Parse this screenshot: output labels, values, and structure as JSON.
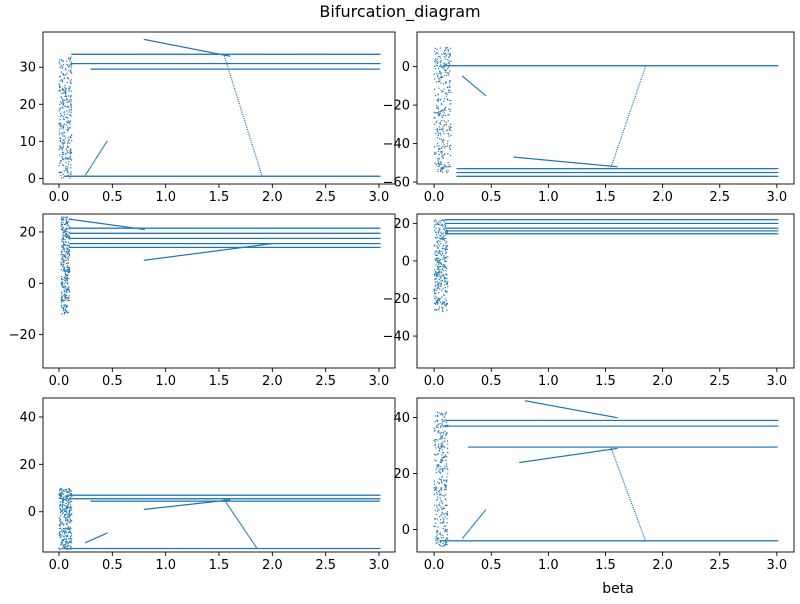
{
  "figure": {
    "title": "Bifurcation_diagram",
    "xlabel": "beta",
    "point_color": "#1f77b4"
  },
  "chart_data": [
    {
      "type": "scatter",
      "xlim": [
        -0.15,
        3.15
      ],
      "ylim": [
        -1.5,
        39.5
      ],
      "xticks": [
        0.0,
        0.5,
        1.0,
        1.5,
        2.0,
        2.5,
        3.0
      ],
      "xtick_labels": [
        "0.0",
        "0.5",
        "1.0",
        "1.5",
        "2.0",
        "2.5",
        "3.0"
      ],
      "yticks": [
        0,
        10,
        20,
        30
      ],
      "ytick_labels": [
        "0",
        "10",
        "20",
        "30"
      ],
      "branches": [
        {
          "x0": 0.12,
          "x1": 3.0,
          "y0": 33.5,
          "y1": 33.5
        },
        {
          "x0": 0.12,
          "x1": 3.0,
          "y0": 31.0,
          "y1": 31.0
        },
        {
          "x0": 0.3,
          "x1": 3.0,
          "y0": 29.5,
          "y1": 29.5
        },
        {
          "x0": 0.05,
          "x1": 3.0,
          "y0": 0.6,
          "y1": 0.6
        },
        {
          "x0": 0.8,
          "x1": 1.6,
          "y0": 37.5,
          "y1": 33.0
        },
        {
          "x0": 1.55,
          "x1": 1.9,
          "y0": 33.0,
          "y1": 1.0
        },
        {
          "x0": 0.25,
          "x1": 0.45,
          "y0": 1.0,
          "y1": 10.0
        }
      ],
      "chaos": {
        "x0": 0.0,
        "x1": 0.12,
        "ymin": 0,
        "ymax": 33
      }
    },
    {
      "type": "scatter",
      "xlim": [
        -0.15,
        3.15
      ],
      "ylim": [
        -61,
        18
      ],
      "xticks": [
        0.0,
        0.5,
        1.0,
        1.5,
        2.0,
        2.5,
        3.0
      ],
      "xtick_labels": [
        "0.0",
        "0.5",
        "1.0",
        "1.5",
        "2.0",
        "2.5",
        "3.0"
      ],
      "yticks": [
        0,
        -20,
        -40,
        -60
      ],
      "ytick_labels": [
        "0",
        "−20",
        "−40",
        "−60"
      ],
      "branches": [
        {
          "x0": 0.08,
          "x1": 3.0,
          "y0": 0.5,
          "y1": 0.5
        },
        {
          "x0": 0.2,
          "x1": 3.0,
          "y0": -53.0,
          "y1": -53.0
        },
        {
          "x0": 0.2,
          "x1": 3.0,
          "y0": -55.0,
          "y1": -55.0
        },
        {
          "x0": 0.2,
          "x1": 3.0,
          "y0": -57.0,
          "y1": -57.0
        },
        {
          "x0": 0.7,
          "x1": 1.6,
          "y0": -47.0,
          "y1": -52.0
        },
        {
          "x0": 1.55,
          "x1": 1.85,
          "y0": -52.0,
          "y1": 0.0
        },
        {
          "x0": 0.25,
          "x1": 0.45,
          "y0": -5.0,
          "y1": -15.0
        }
      ],
      "chaos": {
        "x0": 0.0,
        "x1": 0.15,
        "ymin": -55,
        "ymax": 10
      }
    },
    {
      "type": "scatter",
      "xlim": [
        -0.15,
        3.15
      ],
      "ylim": [
        -33,
        27
      ],
      "xticks": [
        0.0,
        0.5,
        1.0,
        1.5,
        2.0,
        2.5,
        3.0
      ],
      "xtick_labels": [
        "0.0",
        "0.5",
        "1.0",
        "1.5",
        "2.0",
        "2.5",
        "3.0"
      ],
      "yticks": [
        20,
        0,
        -20
      ],
      "ytick_labels": [
        "20",
        "0",
        "−20"
      ],
      "branches": [
        {
          "x0": 0.1,
          "x1": 3.0,
          "y0": 21.5,
          "y1": 21.5
        },
        {
          "x0": 0.1,
          "x1": 3.0,
          "y0": 19.5,
          "y1": 19.5
        },
        {
          "x0": 0.1,
          "x1": 3.0,
          "y0": 17.5,
          "y1": 17.5
        },
        {
          "x0": 0.1,
          "x1": 3.0,
          "y0": 15.5,
          "y1": 15.5
        },
        {
          "x0": 0.1,
          "x1": 3.0,
          "y0": 14.0,
          "y1": 14.0
        },
        {
          "x0": 0.8,
          "x1": 2.0,
          "y0": 9.0,
          "y1": 15.5
        },
        {
          "x0": 0.1,
          "x1": 0.8,
          "y0": 25.0,
          "y1": 21.0
        }
      ],
      "chaos": {
        "x0": 0.02,
        "x1": 0.1,
        "ymin": -12,
        "ymax": 26
      }
    },
    {
      "type": "scatter",
      "xlim": [
        -0.15,
        3.15
      ],
      "ylim": [
        -57,
        25
      ],
      "xticks": [
        0.0,
        0.5,
        1.0,
        1.5,
        2.0,
        2.5,
        3.0
      ],
      "xtick_labels": [
        "0.0",
        "0.5",
        "1.0",
        "1.5",
        "2.0",
        "2.5",
        "3.0"
      ],
      "yticks": [
        20,
        0,
        -20,
        -40
      ],
      "ytick_labels": [
        "20",
        "0",
        "−20",
        "−40"
      ],
      "branches": [
        {
          "x0": 0.1,
          "x1": 3.0,
          "y0": 22.0,
          "y1": 22.0
        },
        {
          "x0": 0.1,
          "x1": 3.0,
          "y0": 20.0,
          "y1": 20.0
        },
        {
          "x0": 0.1,
          "x1": 3.0,
          "y0": 17.5,
          "y1": 17.5
        },
        {
          "x0": 0.1,
          "x1": 3.0,
          "y0": 16.0,
          "y1": 16.0
        },
        {
          "x0": 0.1,
          "x1": 3.0,
          "y0": 14.5,
          "y1": 14.5
        }
      ],
      "chaos": {
        "x0": 0.0,
        "x1": 0.12,
        "ymin": -27,
        "ymax": 22
      }
    },
    {
      "type": "scatter",
      "xlim": [
        -0.15,
        3.15
      ],
      "ylim": [
        -17,
        48
      ],
      "xticks": [
        0.0,
        0.5,
        1.0,
        1.5,
        2.0,
        2.5,
        3.0
      ],
      "xtick_labels": [
        "0.0",
        "0.5",
        "1.0",
        "1.5",
        "2.0",
        "2.5",
        "3.0"
      ],
      "yticks": [
        40,
        20,
        0
      ],
      "ytick_labels": [
        "40",
        "20",
        "0"
      ],
      "branches": [
        {
          "x0": 0.1,
          "x1": 3.0,
          "y0": 7.0,
          "y1": 7.0
        },
        {
          "x0": 0.1,
          "x1": 3.0,
          "y0": 5.5,
          "y1": 5.5
        },
        {
          "x0": 0.3,
          "x1": 3.0,
          "y0": 4.5,
          "y1": 4.5
        },
        {
          "x0": 0.05,
          "x1": 3.0,
          "y0": -15.5,
          "y1": -15.5
        },
        {
          "x0": 0.8,
          "x1": 1.6,
          "y0": 1.0,
          "y1": 5.0
        },
        {
          "x0": 1.55,
          "x1": 1.85,
          "y0": 5.0,
          "y1": -15.0
        },
        {
          "x0": 0.25,
          "x1": 0.45,
          "y0": -13.0,
          "y1": -9.0
        }
      ],
      "chaos": {
        "x0": 0.0,
        "x1": 0.12,
        "ymin": -16,
        "ymax": 10
      }
    },
    {
      "type": "scatter",
      "xlim": [
        -0.15,
        3.15
      ],
      "ylim": [
        -8,
        47
      ],
      "xticks": [
        0.0,
        0.5,
        1.0,
        1.5,
        2.0,
        2.5,
        3.0
      ],
      "xtick_labels": [
        "0.0",
        "0.5",
        "1.0",
        "1.5",
        "2.0",
        "2.5",
        "3.0"
      ],
      "yticks": [
        40,
        20,
        0
      ],
      "ytick_labels": [
        "40",
        "20",
        "0"
      ],
      "branches": [
        {
          "x0": 0.1,
          "x1": 3.0,
          "y0": 39.0,
          "y1": 39.0
        },
        {
          "x0": 0.1,
          "x1": 3.0,
          "y0": 37.0,
          "y1": 37.0
        },
        {
          "x0": 0.3,
          "x1": 3.0,
          "y0": 29.5,
          "y1": 29.5
        },
        {
          "x0": 0.05,
          "x1": 3.0,
          "y0": -4.0,
          "y1": -4.0
        },
        {
          "x0": 0.8,
          "x1": 1.6,
          "y0": 46.0,
          "y1": 40.0
        },
        {
          "x0": 0.75,
          "x1": 1.6,
          "y0": 24.0,
          "y1": 29.0
        },
        {
          "x0": 1.55,
          "x1": 1.85,
          "y0": 29.0,
          "y1": -4.0
        },
        {
          "x0": 0.25,
          "x1": 0.45,
          "y0": -3.0,
          "y1": 7.0
        }
      ],
      "chaos": {
        "x0": 0.0,
        "x1": 0.12,
        "ymin": -6,
        "ymax": 42
      }
    }
  ]
}
